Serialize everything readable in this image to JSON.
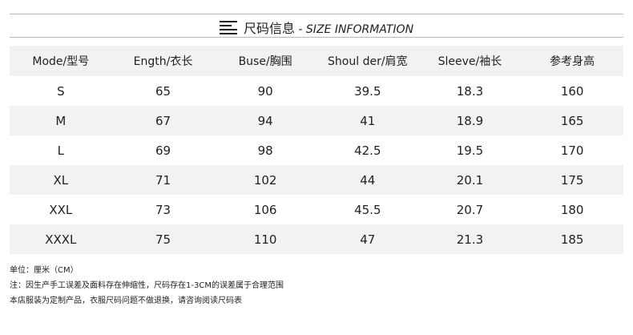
{
  "title": {
    "cn": "尺码信息",
    "sep": " - ",
    "en": "SIZE INFORMATION"
  },
  "table": {
    "headers": [
      "Mode/型号",
      "Ength/衣长",
      "Buse/胸围",
      "Shoul der/肩宽",
      "Sleeve/袖长",
      "参考身高"
    ],
    "rows": [
      [
        "S",
        "65",
        "90",
        "39.5",
        "18.3",
        "160"
      ],
      [
        "M",
        "67",
        "94",
        "41",
        "18.9",
        "165"
      ],
      [
        "L",
        "69",
        "98",
        "42.5",
        "19.5",
        "170"
      ],
      [
        "XL",
        "71",
        "102",
        "44",
        "20.1",
        "175"
      ],
      [
        "XXL",
        "73",
        "106",
        "45.5",
        "20.7",
        "180"
      ],
      [
        "XXXL",
        "75",
        "110",
        "47",
        "21.3",
        "185"
      ]
    ]
  },
  "notes": [
    "单位：厘米（CM）",
    "注：因生产手工误差及面料存在伸缩性，尺码存在1-3CM的误差属于合理范围",
    "本店服装为定制产品，衣服尺码问题不做退换，请咨询阅读尺码表"
  ]
}
